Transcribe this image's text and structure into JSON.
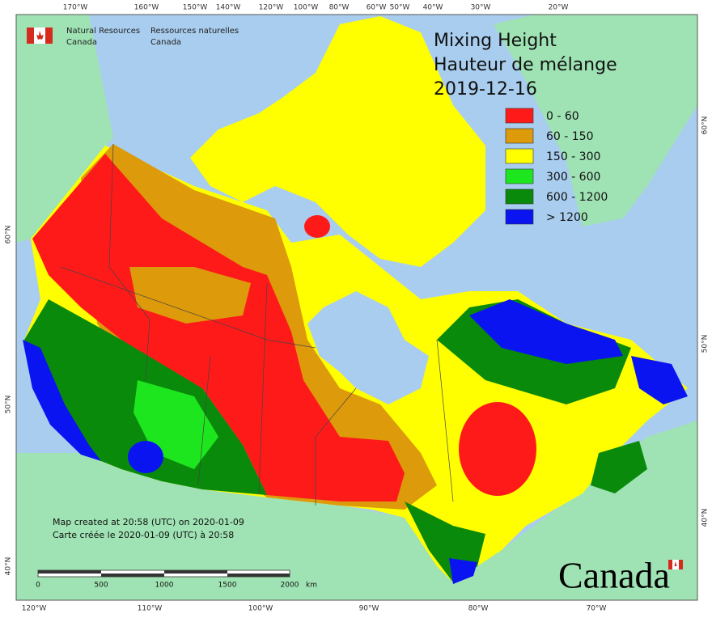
{
  "header": {
    "agency_en": [
      "Natural Resources",
      "Canada"
    ],
    "agency_fr": [
      "Ressources naturelles",
      "Canada"
    ]
  },
  "title": [
    "Mixing Height",
    "Hauteur de mélange",
    "2019-12-16"
  ],
  "legend": [
    {
      "label": "0 - 60",
      "color": "#ff1a1a"
    },
    {
      "label": "60 - 150",
      "color": "#dd9a0a"
    },
    {
      "label": "150 - 300",
      "color": "#ffff00"
    },
    {
      "label": "300 - 600",
      "color": "#1ee61e"
    },
    {
      "label": "600 - 1200",
      "color": "#0a8a0a"
    },
    {
      "label": "> 1200",
      "color": "#0a14f0"
    }
  ],
  "graticule": {
    "top": [
      "170°W",
      "160°W",
      "150°W",
      "140°W",
      "120°W",
      "100°W",
      "80°W",
      "60°W",
      "50°W",
      "40°W",
      "30°W",
      "20°W"
    ],
    "bottom": [
      "120°W",
      "110°W",
      "100°W",
      "90°W",
      "80°W",
      "70°W"
    ],
    "left": [
      "60°N",
      "50°N",
      "40°N"
    ],
    "right": [
      "60°N",
      "50°N",
      "40°N"
    ]
  },
  "footer": [
    "Map created at 20:58 (UTC) on 2020-01-09",
    "Carte créée le 2020-01-09 (UTC) à 20:58"
  ],
  "scale_bar": {
    "labels": [
      "0",
      "500",
      "1000",
      "1500",
      "2000"
    ],
    "unit": "km"
  },
  "wordmark": "Canada"
}
